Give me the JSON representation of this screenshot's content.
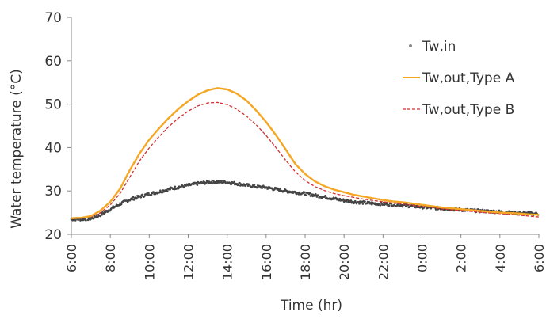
{
  "chart_data": {
    "type": "line",
    "title": "",
    "xlabel": "Time (hr)",
    "ylabel": "Water temperature (°C)",
    "ylim": [
      20,
      70
    ],
    "yticks": [
      20,
      30,
      40,
      50,
      60,
      70
    ],
    "xlim_hours": [
      0,
      24
    ],
    "x_tick_labels": [
      "6:00",
      "8:00",
      "10:00",
      "12:00",
      "14:00",
      "16:00",
      "18:00",
      "20:00",
      "22:00",
      "0:00",
      "2:00",
      "4:00",
      "6:00"
    ],
    "grid": false,
    "legend_position": "top-right",
    "x": [
      "6:00",
      "6:30",
      "7:00",
      "7:30",
      "8:00",
      "8:30",
      "9:00",
      "9:30",
      "10:00",
      "10:30",
      "11:00",
      "11:30",
      "12:00",
      "12:30",
      "13:00",
      "13:30",
      "14:00",
      "14:30",
      "15:00",
      "15:30",
      "16:00",
      "16:30",
      "17:00",
      "17:30",
      "18:00",
      "18:30",
      "19:00",
      "19:30",
      "20:00",
      "20:30",
      "21:00",
      "21:30",
      "22:00",
      "22:30",
      "23:00",
      "23:30",
      "0:00",
      "0:30",
      "1:00",
      "1:30",
      "2:00",
      "2:30",
      "3:00",
      "3:30",
      "4:00",
      "4:30",
      "5:00",
      "5:30",
      "6:00"
    ],
    "series": [
      {
        "name": "Tw,in",
        "style": "markers",
        "color": "#444444",
        "values": [
          23.5,
          23.5,
          23.6,
          24.5,
          25.8,
          27.0,
          28.0,
          28.7,
          29.3,
          29.8,
          30.4,
          30.9,
          31.3,
          31.7,
          32.0,
          32.1,
          32.0,
          31.7,
          31.3,
          31.0,
          30.8,
          30.4,
          30.0,
          29.7,
          29.4,
          29.0,
          28.6,
          28.2,
          27.8,
          27.5,
          27.3,
          27.1,
          27.0,
          26.9,
          26.7,
          26.5,
          26.3,
          26.1,
          26.0,
          25.8,
          25.7,
          25.5,
          25.4,
          25.3,
          25.2,
          25.0,
          24.9,
          24.8,
          24.7
        ]
      },
      {
        "name": "Tw,out,Type A",
        "style": "solid",
        "color": "#f5a623",
        "values": [
          23.7,
          23.8,
          24.2,
          25.5,
          27.5,
          30.5,
          34.8,
          38.6,
          41.8,
          44.4,
          46.8,
          48.9,
          50.7,
          52.2,
          53.2,
          53.7,
          53.4,
          52.4,
          50.8,
          48.5,
          45.9,
          42.9,
          39.6,
          36.2,
          33.9,
          32.2,
          31.1,
          30.3,
          29.7,
          29.1,
          28.7,
          28.3,
          27.9,
          27.6,
          27.4,
          27.1,
          26.8,
          26.5,
          26.2,
          26.0,
          25.8,
          25.6,
          25.4,
          25.2,
          25.0,
          24.9,
          24.8,
          24.6,
          24.5
        ]
      },
      {
        "name": "Tw,out,Type B",
        "style": "dashed",
        "color": "#d32f2f",
        "values": [
          23.6,
          23.7,
          24.0,
          25.0,
          26.8,
          29.4,
          33.2,
          36.9,
          39.9,
          42.5,
          44.8,
          46.8,
          48.4,
          49.6,
          50.3,
          50.4,
          49.9,
          48.8,
          47.2,
          45.2,
          42.8,
          40.0,
          37.1,
          34.4,
          32.4,
          31.0,
          30.1,
          29.4,
          28.9,
          28.5,
          28.1,
          27.8,
          27.5,
          27.2,
          27.0,
          26.7,
          26.4,
          26.2,
          25.9,
          25.7,
          25.5,
          25.3,
          25.1,
          24.9,
          24.8,
          24.6,
          24.4,
          24.2,
          24.0
        ]
      }
    ]
  }
}
